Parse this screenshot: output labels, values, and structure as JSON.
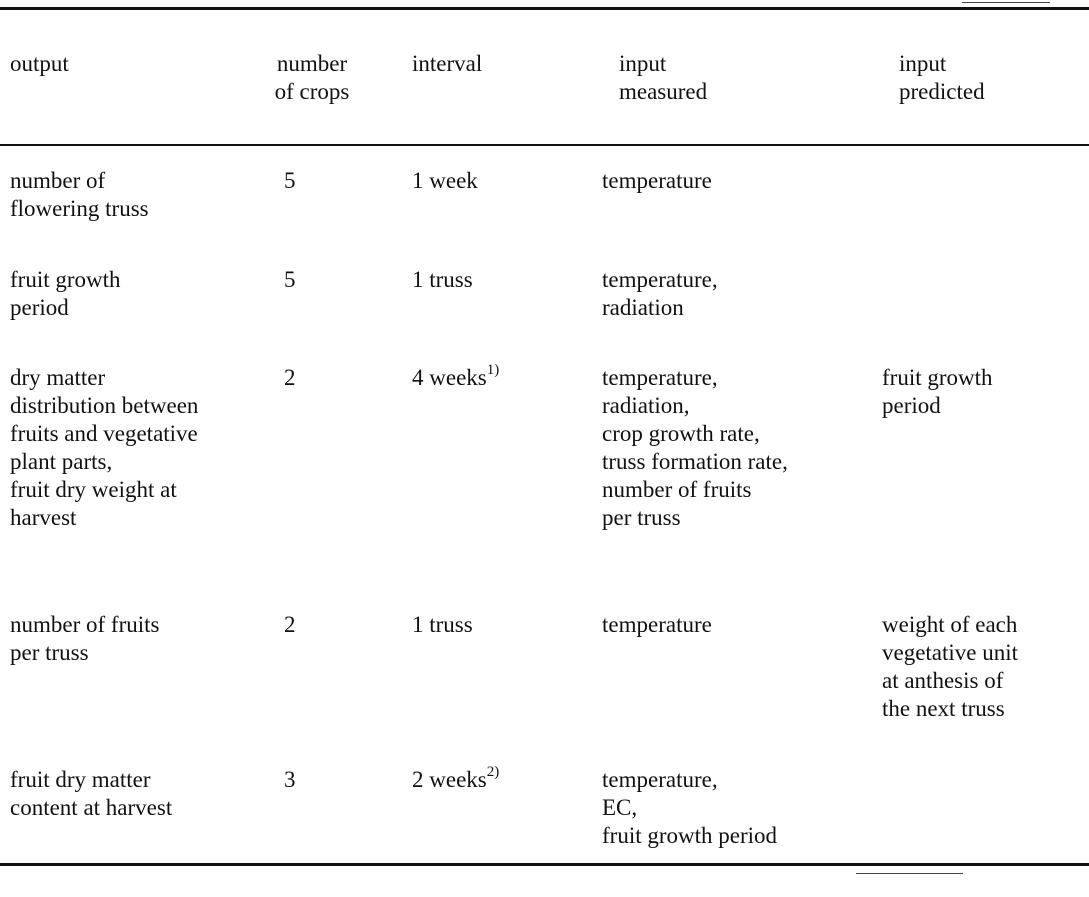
{
  "table": {
    "headers": {
      "output": "output",
      "number_of_crops": "number\nof crops",
      "interval": "interval",
      "input_measured": "input\nmeasured",
      "input_predicted": "input\npredicted"
    },
    "rows": [
      {
        "output": "number of\nflowering truss",
        "crops": "5",
        "interval": "1 week",
        "interval_note": "",
        "measured": "temperature",
        "predicted": ""
      },
      {
        "output": "fruit growth\nperiod",
        "crops": "5",
        "interval": "1 truss",
        "interval_note": "",
        "measured": "temperature,\nradiation",
        "predicted": ""
      },
      {
        "output": "dry matter\ndistribution between\nfruits and vegetative\nplant parts,\nfruit dry weight at\nharvest",
        "crops": "2",
        "interval": "4 weeks",
        "interval_note": "1)",
        "measured": "temperature,\nradiation,\ncrop growth rate,\ntruss formation rate,\nnumber of fruits\nper truss",
        "predicted": "fruit growth\nperiod"
      },
      {
        "output": "number of fruits\nper truss",
        "crops": "2",
        "interval": "1 truss",
        "interval_note": "",
        "measured": "temperature",
        "predicted": "weight of each\nvegetative unit\nat anthesis of\nthe next truss"
      },
      {
        "output": "fruit dry matter\ncontent at harvest",
        "crops": "3",
        "interval": "2 weeks",
        "interval_note": "2)",
        "measured": "temperature,\nEC,\nfruit growth period",
        "predicted": ""
      }
    ]
  }
}
